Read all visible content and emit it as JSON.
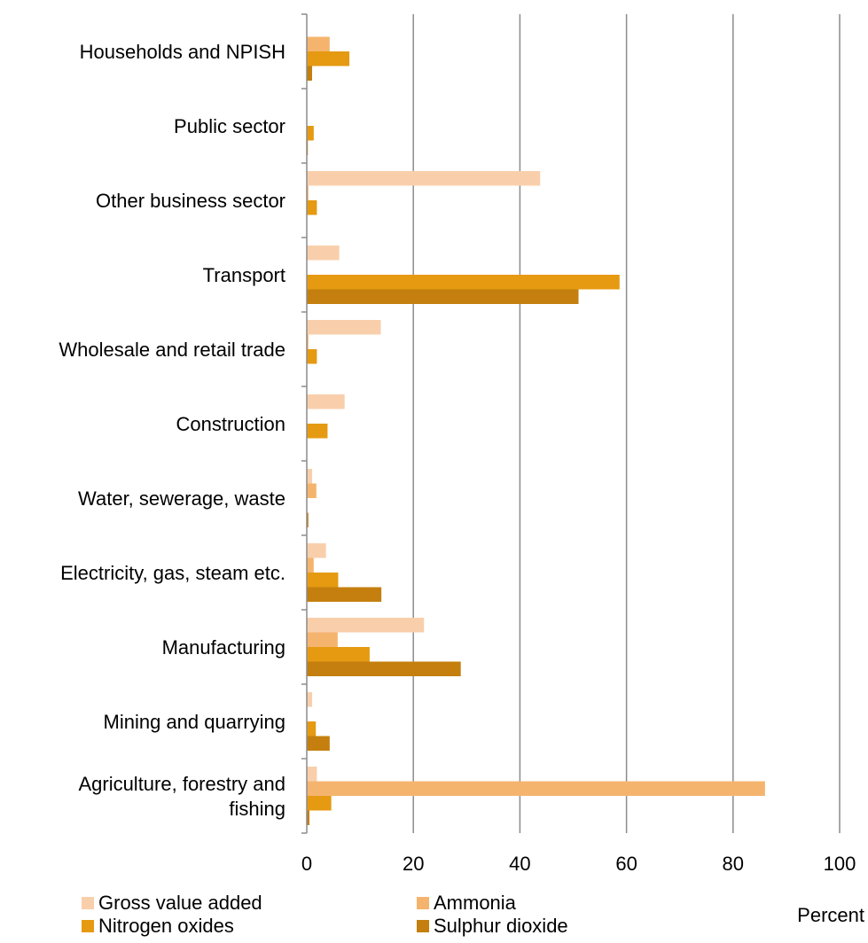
{
  "chart_data": {
    "type": "bar",
    "orientation": "horizontal",
    "categories": [
      "Agriculture, forestry and fishing",
      "Mining and quarrying",
      "Manufacturing",
      "Electricity, gas, steam etc.",
      "Water, sewerage, waste",
      "Construction",
      "Wholesale and retail trade",
      "Transport",
      "Other business sector",
      "Public sector",
      "Households and NPISH"
    ],
    "category_lines": [
      [
        "Agriculture, forestry and",
        "fishing"
      ],
      [
        "Mining and quarrying"
      ],
      [
        "Manufacturing"
      ],
      [
        "Electricity, gas, steam etc."
      ],
      [
        "Water, sewerage, waste"
      ],
      [
        "Construction"
      ],
      [
        "Wholesale and retail trade"
      ],
      [
        "Transport"
      ],
      [
        "Other business sector"
      ],
      [
        "Public sector"
      ],
      [
        "Households and NPISH"
      ]
    ],
    "series": [
      {
        "name": "Gross value added",
        "color": "#F9CFAB",
        "values": [
          1.9,
          1.0,
          22.0,
          3.6,
          1.0,
          7.1,
          13.9,
          6.1,
          43.8,
          0.0,
          0.0
        ]
      },
      {
        "name": "Ammonia",
        "color": "#F5B46E",
        "values": [
          86.0,
          0.0,
          5.8,
          1.3,
          1.8,
          0.0,
          0.3,
          0.0,
          0.3,
          0.0,
          4.3
        ]
      },
      {
        "name": "Nitrogen oxides",
        "color": "#E59A12",
        "values": [
          4.6,
          1.7,
          11.8,
          5.9,
          0.0,
          3.9,
          1.9,
          58.7,
          1.9,
          1.3,
          8.0
        ]
      },
      {
        "name": "Sulphur dioxide",
        "color": "#C47F0E",
        "values": [
          0.5,
          4.3,
          28.9,
          14.0,
          0.3,
          0.0,
          0.0,
          51.0,
          0.0,
          0.2,
          1.0
        ]
      }
    ],
    "xlim": [
      0,
      100
    ],
    "xticks": [
      0,
      20,
      40,
      60,
      80,
      100
    ],
    "xlabel": "Percent",
    "grid": "vertical",
    "legend_position": "bottom",
    "title": ""
  }
}
